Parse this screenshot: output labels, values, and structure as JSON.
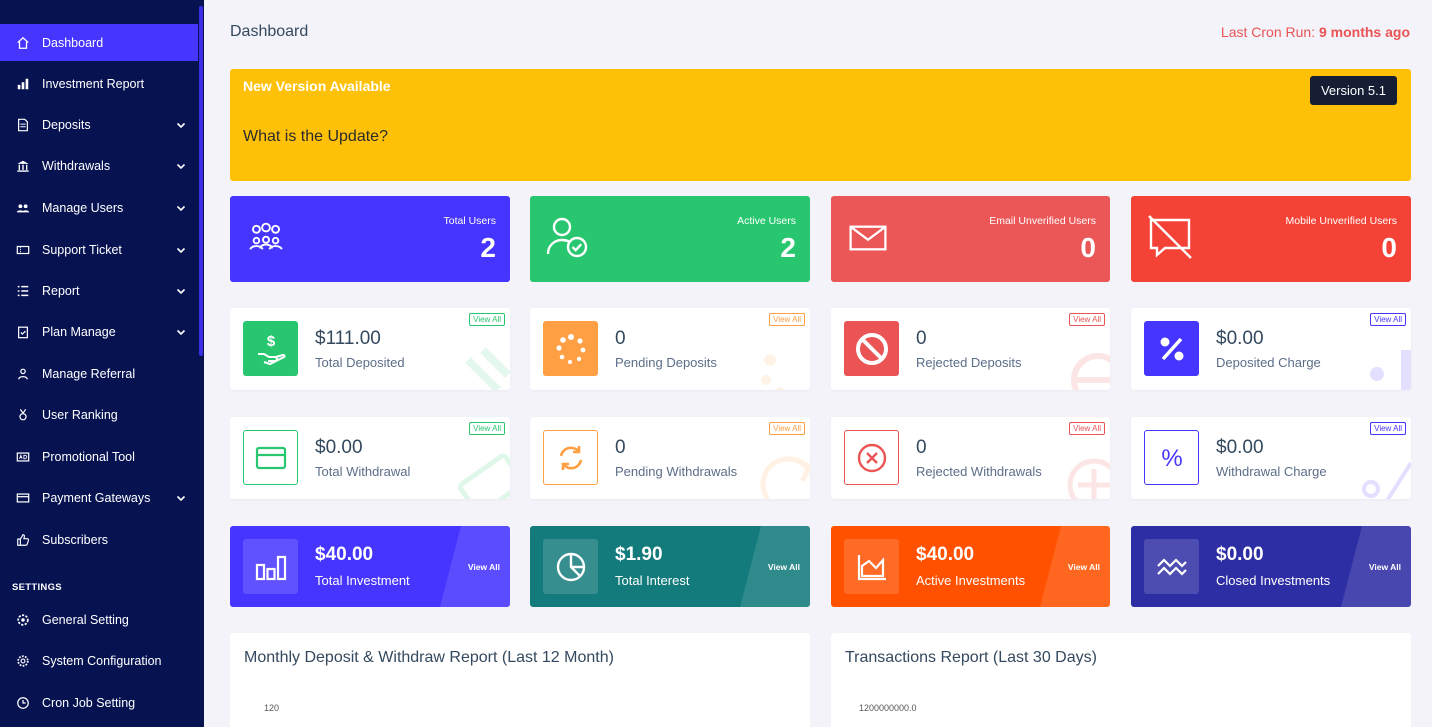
{
  "sidebar": {
    "items": [
      {
        "label": "Dashboard",
        "icon": "home-icon",
        "active": true
      },
      {
        "label": "Investment Report",
        "icon": "bar-chart-icon"
      },
      {
        "label": "Deposits",
        "icon": "invoice-icon",
        "dropdown": true
      },
      {
        "label": "Withdrawals",
        "icon": "bank-icon",
        "dropdown": true
      },
      {
        "label": "Manage Users",
        "icon": "users-icon",
        "dropdown": true
      },
      {
        "label": "Support Ticket",
        "icon": "ticket-icon",
        "dropdown": true
      },
      {
        "label": "Report",
        "icon": "list-icon",
        "dropdown": true
      },
      {
        "label": "Plan Manage",
        "icon": "clipboard-icon",
        "dropdown": true
      },
      {
        "label": "Manage Referral",
        "icon": "referral-icon"
      },
      {
        "label": "User Ranking",
        "icon": "medal-icon"
      },
      {
        "label": "Promotional Tool",
        "icon": "ad-icon"
      },
      {
        "label": "Payment Gateways",
        "icon": "credit-card-icon",
        "dropdown": true
      },
      {
        "label": "Subscribers",
        "icon": "thumbs-up-icon"
      }
    ],
    "settings_heading": "SETTINGS",
    "settings_items": [
      {
        "label": "General Setting",
        "icon": "cog-icon"
      },
      {
        "label": "System Configuration",
        "icon": "gear-icon"
      },
      {
        "label": "Cron Job Setting",
        "icon": "clock-icon"
      }
    ]
  },
  "header": {
    "title": "Dashboard",
    "cron_label": "Last Cron Run:",
    "cron_value": "9 months ago"
  },
  "banner": {
    "title": "New Version Available",
    "question": "What is the Update?",
    "version": "Version 5.1",
    "color": "#ffc107"
  },
  "stats": [
    {
      "label": "Total Users",
      "value": "2",
      "color": "#4634ff",
      "icon": "users-group-icon"
    },
    {
      "label": "Active Users",
      "value": "2",
      "color": "#28c76f",
      "icon": "user-check-icon"
    },
    {
      "label": "Email Unverified Users",
      "value": "0",
      "color": "#eb5757",
      "icon": "envelope-icon"
    },
    {
      "label": "Mobile Unverified Users",
      "value": "0",
      "color": "#f44336",
      "icon": "comment-slash-icon"
    }
  ],
  "deposit_cards": [
    {
      "value": "$111.00",
      "label": "Total Deposited",
      "view": "View All",
      "color": "#28c76f",
      "icon": "hand-dollar-icon"
    },
    {
      "value": "0",
      "label": "Pending Deposits",
      "view": "View All",
      "color": "#ff9f43",
      "icon": "spinner-icon"
    },
    {
      "value": "0",
      "label": "Rejected Deposits",
      "view": "View All",
      "color": "#ea5455",
      "icon": "ban-icon"
    },
    {
      "value": "$0.00",
      "label": "Deposited Charge",
      "view": "View All",
      "color": "#4634ff",
      "icon": "percent-icon"
    }
  ],
  "withdraw_cards": [
    {
      "value": "$0.00",
      "label": "Total Withdrawal",
      "view": "View All",
      "color": "#28c76f",
      "icon": "card-icon"
    },
    {
      "value": "0",
      "label": "Pending Withdrawals",
      "view": "View All",
      "color": "#ff9f43",
      "icon": "sync-icon"
    },
    {
      "value": "0",
      "label": "Rejected Withdrawals",
      "view": "View All",
      "color": "#ea5455",
      "icon": "times-circle-icon"
    },
    {
      "value": "$0.00",
      "label": "Withdrawal Charge",
      "view": "View All",
      "color": "#4634ff",
      "icon": "percent-icon"
    }
  ],
  "investment_cards": [
    {
      "value": "$40.00",
      "label": "Total Investment",
      "view": "View All",
      "color": "#4634ff",
      "icon": "chart-bars-icon"
    },
    {
      "value": "$1.90",
      "label": "Total Interest",
      "view": "View All",
      "color": "#137b7b",
      "icon": "pie-chart-icon"
    },
    {
      "value": "$40.00",
      "label": "Active Investments",
      "view": "View All",
      "color": "#ff5100",
      "icon": "area-chart-icon"
    },
    {
      "value": "$0.00",
      "label": "Closed Investments",
      "view": "View All",
      "color": "#2e2ea4",
      "icon": "wave-icon"
    }
  ],
  "panels": [
    {
      "title": "Monthly Deposit & Withdraw Report (Last 12 Month)",
      "first_tick": "120"
    },
    {
      "title": "Transactions Report (Last 30 Days)",
      "first_tick": "1200000000.0"
    }
  ]
}
